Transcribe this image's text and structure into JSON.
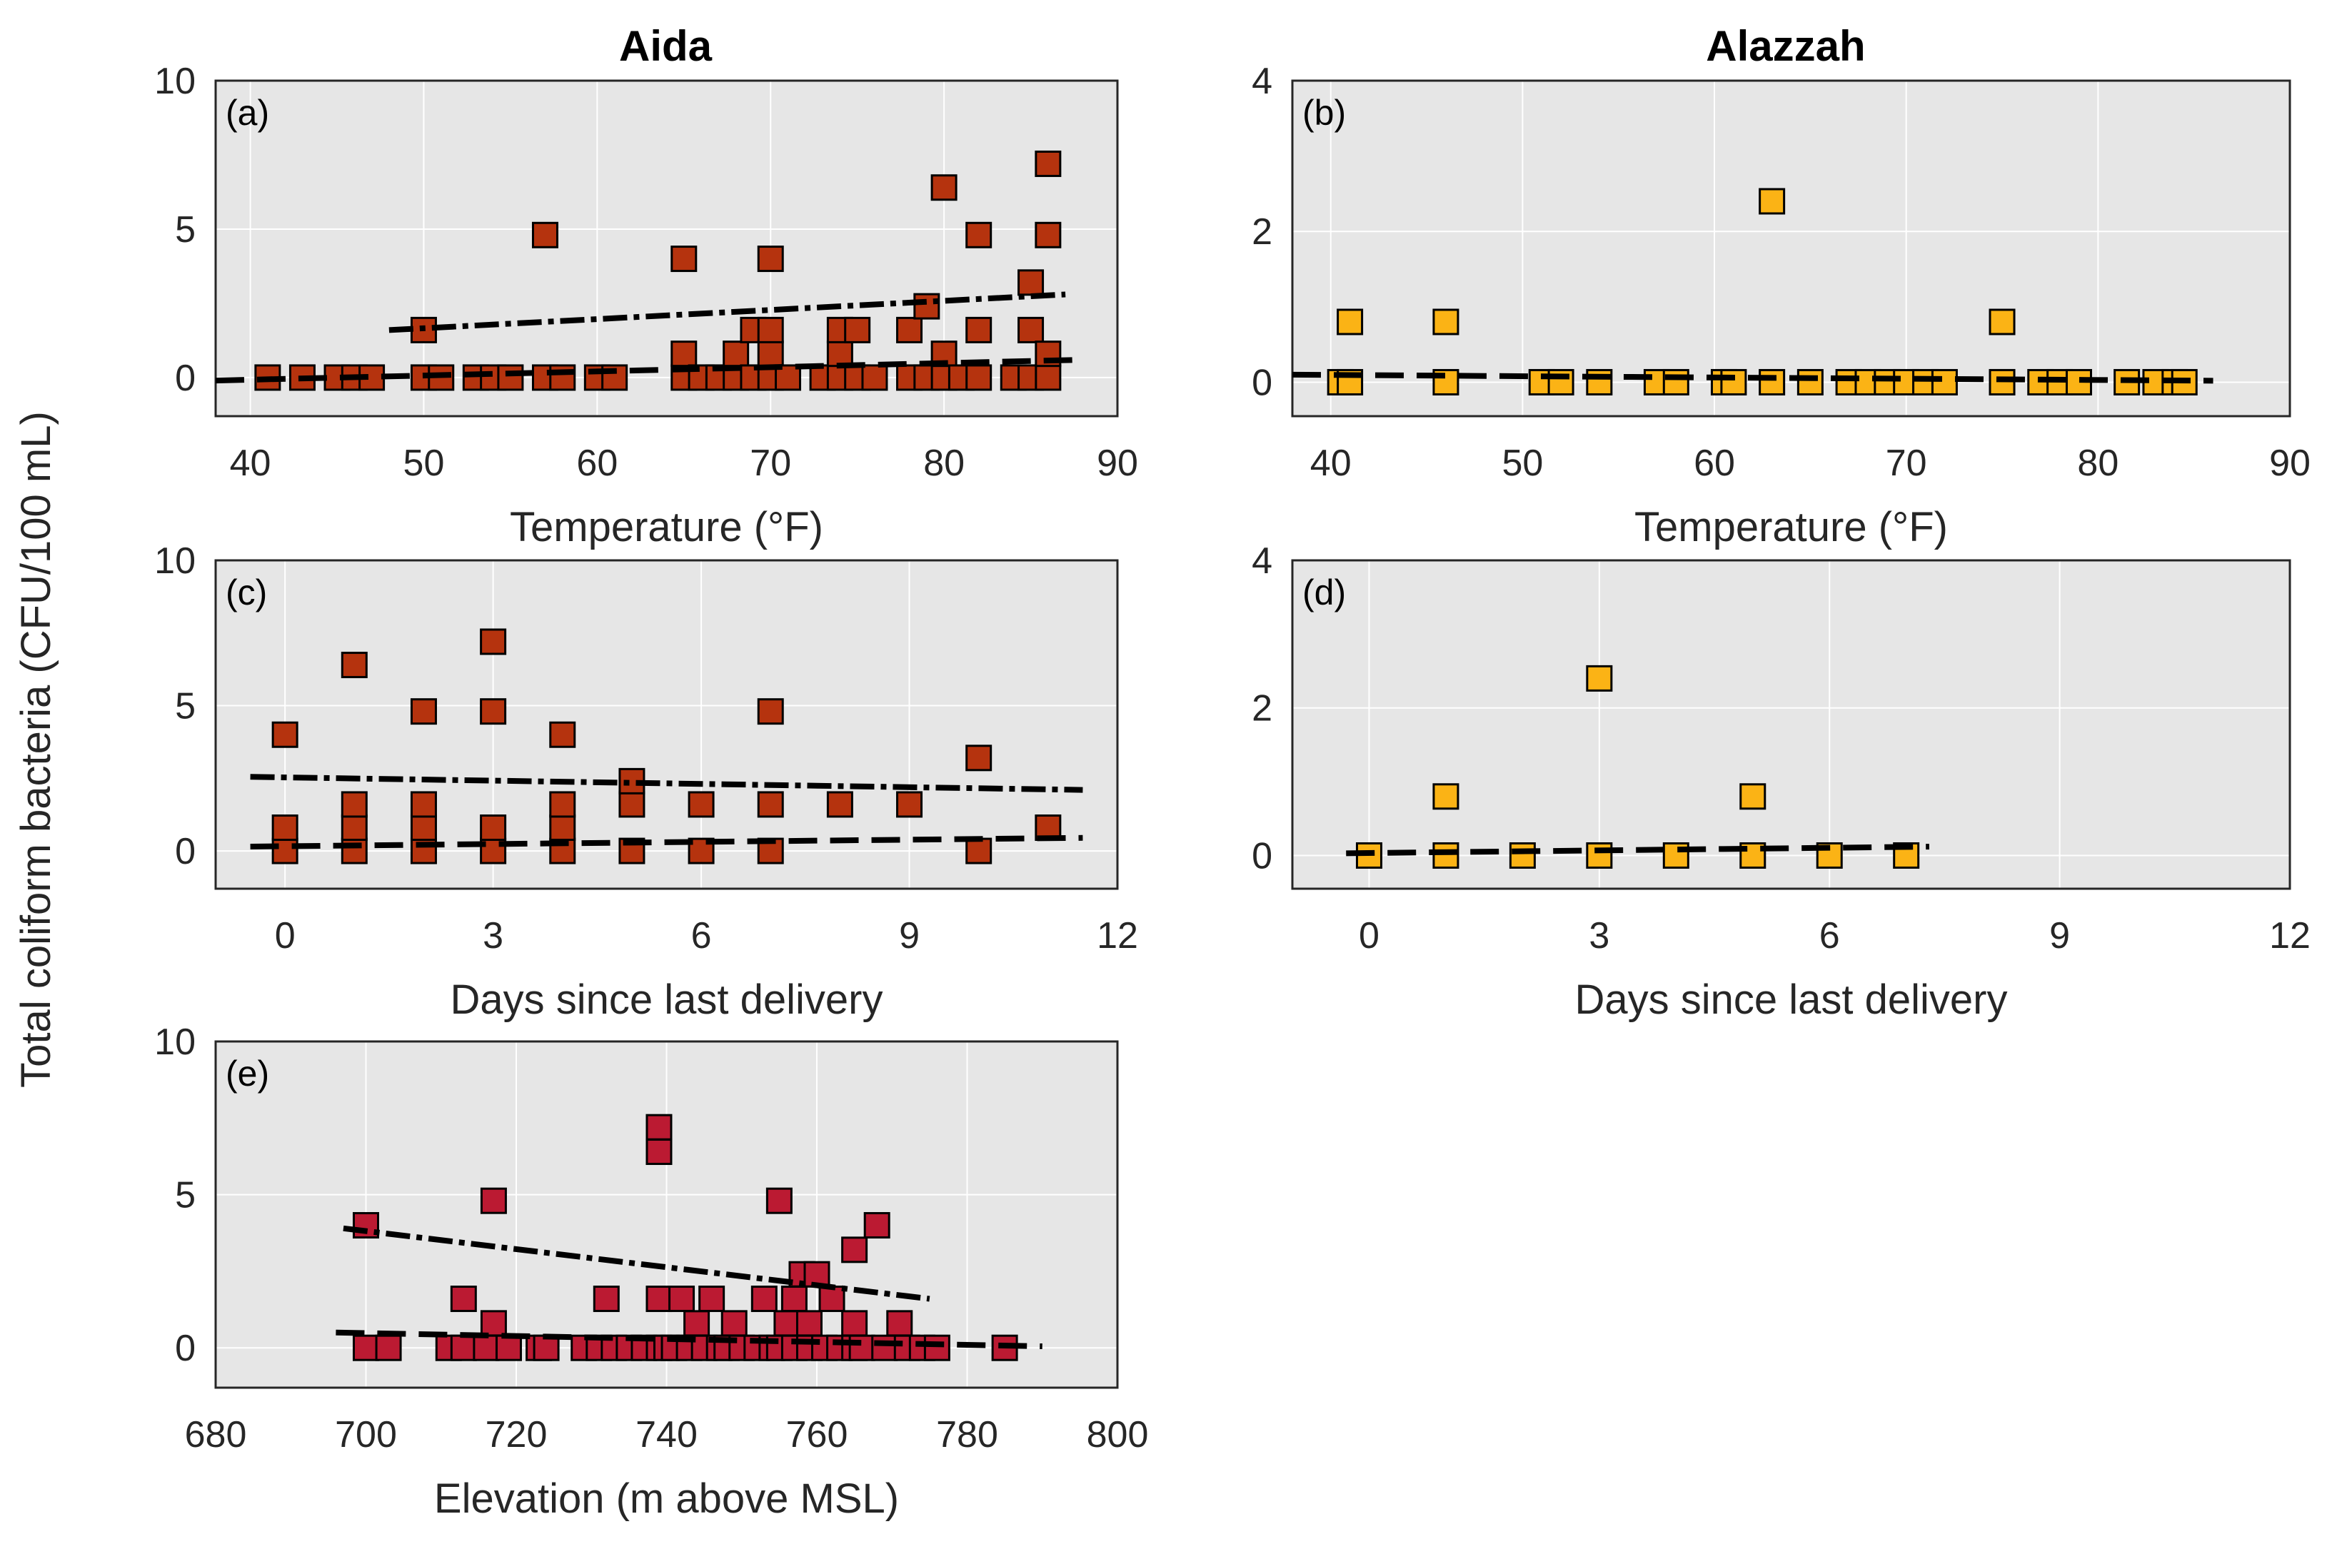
{
  "figure": {
    "ylabel": "Total coliform bacteria (CFU/100 mL)",
    "column_titles": [
      "Aida",
      "Alazzah"
    ]
  },
  "chart_data": [
    {
      "id": "a",
      "tag": "(a)",
      "type": "scatter",
      "community": "Aida",
      "xlabel": "Temperature (°F)",
      "xlim": [
        38,
        90
      ],
      "ylim": [
        -1.3,
        10
      ],
      "xticks": [
        40,
        50,
        60,
        70,
        80,
        90
      ],
      "yticks": [
        0,
        5,
        10
      ],
      "marker_color": "#b5330e",
      "points": [
        [
          41,
          0
        ],
        [
          43,
          0
        ],
        [
          45,
          0
        ],
        [
          46,
          0
        ],
        [
          47,
          0
        ],
        [
          50,
          0
        ],
        [
          50,
          1.6
        ],
        [
          51,
          0
        ],
        [
          53,
          0
        ],
        [
          54,
          0
        ],
        [
          55,
          0
        ],
        [
          57,
          0
        ],
        [
          57,
          4.8
        ],
        [
          58,
          0
        ],
        [
          60,
          0
        ],
        [
          61,
          0
        ],
        [
          65,
          0
        ],
        [
          65,
          0.8
        ],
        [
          65,
          4
        ],
        [
          66,
          0
        ],
        [
          67,
          0
        ],
        [
          68,
          0
        ],
        [
          68,
          0.8
        ],
        [
          69,
          0
        ],
        [
          69,
          1.6
        ],
        [
          70,
          0
        ],
        [
          70,
          0.8
        ],
        [
          70,
          1.6
        ],
        [
          70,
          4
        ],
        [
          71,
          0
        ],
        [
          73,
          0
        ],
        [
          74,
          0
        ],
        [
          74,
          0.8
        ],
        [
          74,
          1.6
        ],
        [
          75,
          0
        ],
        [
          75,
          1.6
        ],
        [
          76,
          0
        ],
        [
          78,
          0
        ],
        [
          78,
          1.6
        ],
        [
          79,
          0
        ],
        [
          79,
          2.4
        ],
        [
          80,
          0
        ],
        [
          80,
          0.8
        ],
        [
          80,
          6.4
        ],
        [
          81,
          0
        ],
        [
          82,
          0
        ],
        [
          82,
          1.6
        ],
        [
          82,
          4.8
        ],
        [
          84,
          0
        ],
        [
          85,
          0
        ],
        [
          85,
          1.6
        ],
        [
          85,
          3.2
        ],
        [
          86,
          0
        ],
        [
          86,
          0.8
        ],
        [
          86,
          4.8
        ],
        [
          86,
          7.2
        ]
      ],
      "trend_upper": {
        "x": [
          48,
          87
        ],
        "y": [
          1.6,
          2.8
        ]
      },
      "trend_lower": {
        "x": [
          38,
          88
        ],
        "y": [
          -0.1,
          0.6
        ]
      }
    },
    {
      "id": "b",
      "tag": "(b)",
      "type": "scatter",
      "community": "Alazzah",
      "xlabel": "Temperature (°F)",
      "xlim": [
        38,
        90
      ],
      "ylim": [
        -0.45,
        4
      ],
      "xticks": [
        40,
        50,
        60,
        70,
        80,
        90
      ],
      "yticks": [
        0,
        2,
        4
      ],
      "marker_color": "#fbb315",
      "points": [
        [
          40.5,
          0
        ],
        [
          41,
          0
        ],
        [
          41,
          0.8
        ],
        [
          46,
          0
        ],
        [
          46,
          0.8
        ],
        [
          51,
          0
        ],
        [
          52,
          0
        ],
        [
          54,
          0
        ],
        [
          57,
          0
        ],
        [
          58,
          0
        ],
        [
          60.5,
          0
        ],
        [
          61,
          0
        ],
        [
          63,
          0
        ],
        [
          63,
          2.4
        ],
        [
          65,
          0
        ],
        [
          67,
          0
        ],
        [
          68,
          0
        ],
        [
          69,
          0
        ],
        [
          70,
          0
        ],
        [
          71,
          0
        ],
        [
          72,
          0
        ],
        [
          75,
          0
        ],
        [
          75,
          0
        ],
        [
          75,
          0.8
        ],
        [
          77,
          0
        ],
        [
          78,
          0
        ],
        [
          79,
          0
        ],
        [
          81.5,
          0
        ],
        [
          83,
          0
        ],
        [
          84,
          0
        ],
        [
          84.5,
          0
        ]
      ],
      "trend_upper": null,
      "trend_lower": {
        "x": [
          38,
          86
        ],
        "y": [
          0.1,
          0.02
        ]
      }
    },
    {
      "id": "c",
      "tag": "(c)",
      "type": "scatter",
      "community": "Aida",
      "xlabel": "Days since last delivery",
      "xlim": [
        -1,
        12
      ],
      "ylim": [
        -1.3,
        10
      ],
      "xticks": [
        0,
        3,
        6,
        9,
        12
      ],
      "yticks": [
        0,
        5,
        10
      ],
      "marker_color": "#b5330e",
      "points": [
        [
          0,
          0
        ],
        [
          0,
          0.8
        ],
        [
          0,
          4
        ],
        [
          1,
          0
        ],
        [
          1,
          0.8
        ],
        [
          1,
          1.6
        ],
        [
          1,
          6.4
        ],
        [
          2,
          0
        ],
        [
          2,
          0.8
        ],
        [
          2,
          1.6
        ],
        [
          2,
          4.8
        ],
        [
          3,
          0
        ],
        [
          3,
          0.8
        ],
        [
          3,
          4.8
        ],
        [
          3,
          7.2
        ],
        [
          4,
          0
        ],
        [
          4,
          0.8
        ],
        [
          4,
          1.6
        ],
        [
          4,
          4
        ],
        [
          5,
          0
        ],
        [
          5,
          1.6
        ],
        [
          5,
          2.4
        ],
        [
          6,
          0
        ],
        [
          6,
          1.6
        ],
        [
          7,
          0
        ],
        [
          7,
          1.6
        ],
        [
          7,
          4.8
        ],
        [
          8,
          1.6
        ],
        [
          9,
          1.6
        ],
        [
          10,
          0
        ],
        [
          10,
          3.2
        ],
        [
          11,
          0.8
        ]
      ],
      "trend_upper": {
        "x": [
          -0.5,
          11.5
        ],
        "y": [
          2.55,
          2.1
        ]
      },
      "trend_lower": {
        "x": [
          -0.5,
          11.5
        ],
        "y": [
          0.15,
          0.45
        ]
      }
    },
    {
      "id": "d",
      "tag": "(d)",
      "type": "scatter",
      "community": "Alazzah",
      "xlabel": "Days since last delivery",
      "xlim": [
        -1,
        12
      ],
      "ylim": [
        -0.45,
        4
      ],
      "xticks": [
        0,
        3,
        6,
        9,
        12
      ],
      "yticks": [
        0,
        2,
        4
      ],
      "marker_color": "#fbb315",
      "points": [
        [
          0,
          0
        ],
        [
          1,
          0
        ],
        [
          1,
          0.8
        ],
        [
          2,
          0
        ],
        [
          3,
          0
        ],
        [
          3,
          2.4
        ],
        [
          4,
          0
        ],
        [
          5,
          0
        ],
        [
          5,
          0.8
        ],
        [
          6,
          0
        ],
        [
          7,
          0
        ]
      ],
      "trend_upper": null,
      "trend_lower": {
        "x": [
          -0.3,
          7.3
        ],
        "y": [
          0.03,
          0.12
        ]
      }
    },
    {
      "id": "e",
      "tag": "(e)",
      "type": "scatter",
      "community": "Aida",
      "xlabel": "Elevation (m above MSL)",
      "xlim": [
        680,
        800
      ],
      "ylim": [
        -1.3,
        10
      ],
      "xticks": [
        680,
        700,
        720,
        740,
        760,
        780,
        800
      ],
      "yticks": [
        0,
        5,
        10
      ],
      "marker_color": "#bb1a32",
      "points": [
        [
          700,
          4
        ],
        [
          700,
          0
        ],
        [
          703,
          0
        ],
        [
          711,
          0
        ],
        [
          713,
          0
        ],
        [
          713,
          1.6
        ],
        [
          716,
          0
        ],
        [
          717,
          0.8
        ],
        [
          717,
          4.8
        ],
        [
          719,
          0
        ],
        [
          723,
          0
        ],
        [
          724,
          0
        ],
        [
          729,
          0
        ],
        [
          731,
          0
        ],
        [
          732,
          1.6
        ],
        [
          733,
          0
        ],
        [
          735,
          0
        ],
        [
          737,
          0
        ],
        [
          739,
          0
        ],
        [
          739,
          1.6
        ],
        [
          739,
          6.4
        ],
        [
          739,
          7.2
        ],
        [
          740,
          0
        ],
        [
          741,
          0
        ],
        [
          742,
          1.6
        ],
        [
          743,
          0
        ],
        [
          744,
          0.8
        ],
        [
          745,
          0
        ],
        [
          746,
          1.6
        ],
        [
          747,
          0
        ],
        [
          748,
          0
        ],
        [
          749,
          0.8
        ],
        [
          750,
          0
        ],
        [
          752,
          0
        ],
        [
          753,
          1.6
        ],
        [
          754,
          0
        ],
        [
          755,
          0
        ],
        [
          755,
          4.8
        ],
        [
          756,
          0.8
        ],
        [
          757,
          1.6
        ],
        [
          757,
          0
        ],
        [
          758,
          2.4
        ],
        [
          759,
          0.8
        ],
        [
          759,
          0
        ],
        [
          760,
          2.4
        ],
        [
          761,
          0
        ],
        [
          762,
          1.6
        ],
        [
          763,
          0
        ],
        [
          765,
          0
        ],
        [
          765,
          0.8
        ],
        [
          765,
          3.2
        ],
        [
          766,
          0
        ],
        [
          768,
          4
        ],
        [
          769,
          0
        ],
        [
          771,
          0.8
        ],
        [
          772,
          0
        ],
        [
          774,
          0
        ],
        [
          776,
          0
        ],
        [
          785,
          0
        ]
      ],
      "trend_upper": {
        "x": [
          697,
          775
        ],
        "y": [
          3.9,
          1.6
        ]
      },
      "trend_lower": {
        "x": [
          696,
          790
        ],
        "y": [
          0.5,
          0.05
        ]
      }
    }
  ]
}
